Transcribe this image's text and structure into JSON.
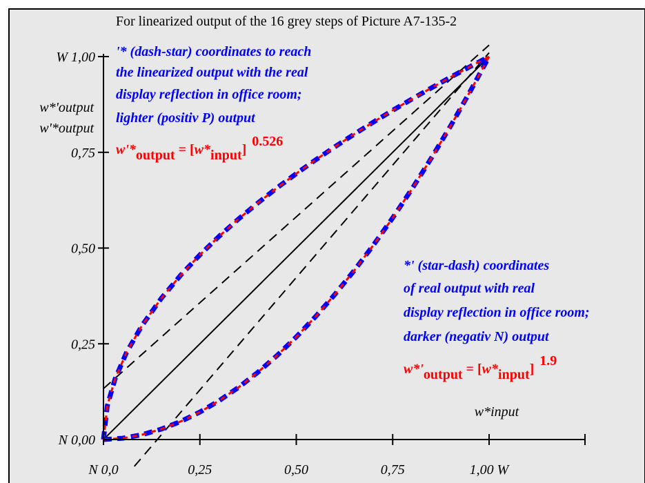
{
  "chart_data": {
    "type": "line",
    "title": "For linearized output of the 16 grey steps of Picture A7-135-2",
    "xlabel": "w*input",
    "ylabel": [
      "w*'output",
      "w'*output"
    ],
    "xlim": [
      0,
      1
    ],
    "ylim": [
      0,
      1
    ],
    "x_ticks": [
      "N  0,0",
      "0,25",
      "0,50",
      "0,75",
      "1,00  W"
    ],
    "y_ticks": [
      "N 0,00",
      "0,25",
      "0,50",
      "0,75",
      "W 1,00"
    ],
    "series": [
      {
        "kind": "gamma",
        "exponent": 0.526,
        "x": [
          0,
          0.01,
          0.03,
          0.06,
          0.1,
          0.15,
          0.2,
          0.25,
          0.3,
          0.35,
          0.4,
          0.45,
          0.5,
          0.55,
          0.6,
          0.65,
          0.7,
          0.75,
          0.8,
          0.85,
          0.9,
          0.95,
          1.0
        ]
      },
      {
        "kind": "gamma",
        "exponent": 1.9,
        "x": [
          0,
          0.05,
          0.1,
          0.15,
          0.2,
          0.25,
          0.3,
          0.35,
          0.4,
          0.45,
          0.5,
          0.55,
          0.6,
          0.65,
          0.7,
          0.75,
          0.8,
          0.85,
          0.9,
          0.95,
          1.0
        ]
      }
    ],
    "reference_lines": [
      {
        "kind": "diagonal",
        "from": [
          0,
          0
        ],
        "to": [
          1,
          1
        ]
      },
      {
        "kind": "dashed",
        "from": [
          0,
          0.133
        ],
        "to": [
          1,
          1.03
        ]
      },
      {
        "kind": "dashed",
        "from": [
          0.08,
          -0.07
        ],
        "to": [
          1,
          1.01
        ]
      }
    ],
    "colors": {
      "curve_outer": "#0000ff",
      "curve_inner": "#ff0000",
      "annotation": "#0000ff",
      "formula": "#ff0000",
      "background": "#e8e8e8"
    }
  },
  "annotations": {
    "upper": {
      "lines": [
        "'* (dash-star) coordinates to reach",
        "the linearized output with the real",
        "display reflection in office room;",
        "lighter (positiv P) output"
      ],
      "formula": {
        "var": "w'*",
        "sub": "output",
        "eq": " = [",
        "var2": "w*",
        "sub2": "input",
        "close": "]",
        "exp": "0.526"
      }
    },
    "lower": {
      "lines": [
        "*' (star-dash) coordinates",
        "of real output with real",
        "display reflection in office room;",
        "darker (negativ N) output"
      ],
      "formula": {
        "var": "w*'",
        "sub": "output",
        "eq": " = [",
        "var2": "w*",
        "sub2": "input",
        "close": "]",
        "exp": "1.9"
      }
    }
  }
}
